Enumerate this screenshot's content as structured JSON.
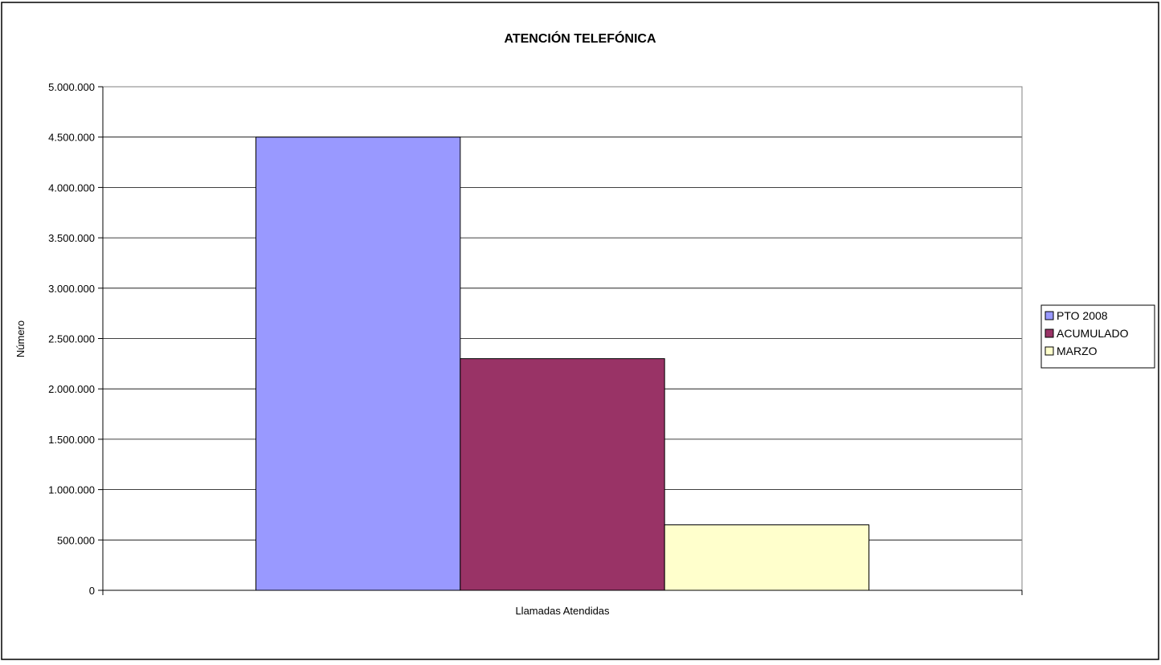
{
  "chart_data": {
    "type": "bar",
    "title": "ATENCIÓN TELEFÓNICA",
    "xlabel": "Llamadas Atendidas",
    "ylabel": "Número",
    "categories": [
      "Llamadas Atendidas"
    ],
    "ylim": [
      0,
      5000000
    ],
    "yticks": [
      0,
      500000,
      1000000,
      1500000,
      2000000,
      2500000,
      3000000,
      3500000,
      4000000,
      4500000,
      5000000
    ],
    "ytick_labels": [
      "0",
      "500.000",
      "1.000.000",
      "1.500.000",
      "2.000.000",
      "2.500.000",
      "3.000.000",
      "3.500.000",
      "4.000.000",
      "4.500.000",
      "5.000.000"
    ],
    "grid": true,
    "legend_position": "right",
    "series": [
      {
        "name": "PTO 2008",
        "values": [
          4500000
        ],
        "color": "#9999ff"
      },
      {
        "name": "ACUMULADO",
        "values": [
          2300000
        ],
        "color": "#993366"
      },
      {
        "name": "MARZO",
        "values": [
          650000
        ],
        "color": "#ffffcc"
      }
    ]
  }
}
